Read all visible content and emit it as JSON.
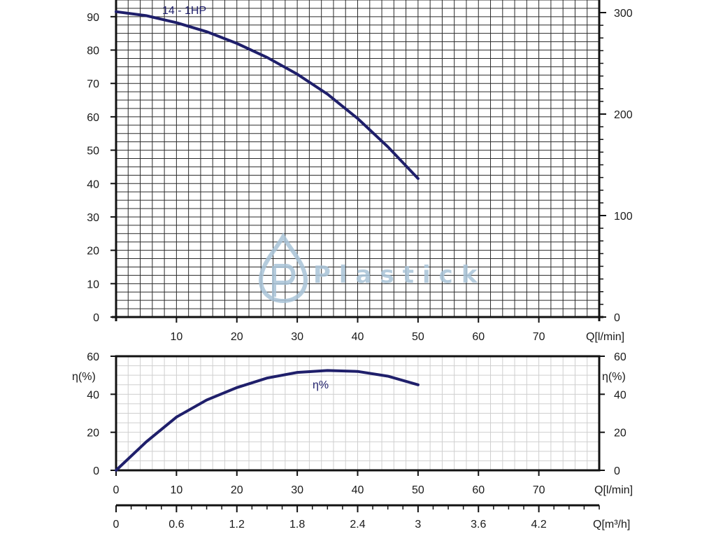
{
  "watermark": {
    "text": "Plastick",
    "logo_icon": "water-drop-p-icon",
    "color": "#a9c4d8"
  },
  "chart_data": [
    {
      "id": "head",
      "type": "line",
      "xlim": [
        0,
        80
      ],
      "ylim": [
        0,
        95
      ],
      "grid": true,
      "x_ticks": [
        "10",
        "20",
        "30",
        "40",
        "50",
        "60",
        "70"
      ],
      "y_ticks": [
        "0",
        "10",
        "20",
        "30",
        "40",
        "50",
        "60",
        "70",
        "80",
        "90"
      ],
      "y2_ticks": [
        "0",
        "100",
        "200",
        "300"
      ],
      "y2lim": [
        0,
        300
      ],
      "xlabel": "Q[l/min]",
      "ylabel": "",
      "series": [
        {
          "name": "14 - 1HP",
          "x": [
            0,
            5,
            10,
            15,
            20,
            25,
            30,
            35,
            40,
            45,
            50
          ],
          "y": [
            91.5,
            90.3,
            88.2,
            85.5,
            82,
            77.8,
            72.8,
            66.8,
            59.5,
            51,
            41.5
          ],
          "color": "#1f1f6b"
        }
      ]
    },
    {
      "id": "efficiency",
      "type": "line",
      "xlim": [
        0,
        80
      ],
      "ylim": [
        0,
        60
      ],
      "grid": true,
      "x_ticks": [
        "0",
        "10",
        "20",
        "30",
        "40",
        "50",
        "60",
        "70"
      ],
      "y_ticks": [
        "0",
        "20",
        "40",
        "60"
      ],
      "y2_ticks": [
        "0",
        "20",
        "40",
        "60"
      ],
      "xlabel": "Q[l/min]",
      "ylabel": "η(%)",
      "y2label": "η(%)",
      "series": [
        {
          "name": "η%",
          "x": [
            0,
            5,
            10,
            15,
            20,
            25,
            30,
            35,
            40,
            45,
            50
          ],
          "y": [
            0,
            15,
            28,
            37,
            43.5,
            48.5,
            51.5,
            52.5,
            52,
            49.5,
            45
          ],
          "color": "#1f1f6b"
        }
      ]
    },
    {
      "id": "flow-m3h-axis",
      "type": "axis",
      "xlim": [
        0,
        4.8
      ],
      "x_ticks": [
        "0",
        "0.6",
        "1.2",
        "1.8",
        "2.4",
        "3",
        "3.6",
        "4.2"
      ],
      "x_tick_values": [
        0,
        0.6,
        1.2,
        1.8,
        2.4,
        3,
        3.6,
        4.2
      ],
      "xlabel": "Q[m³/h]"
    }
  ]
}
